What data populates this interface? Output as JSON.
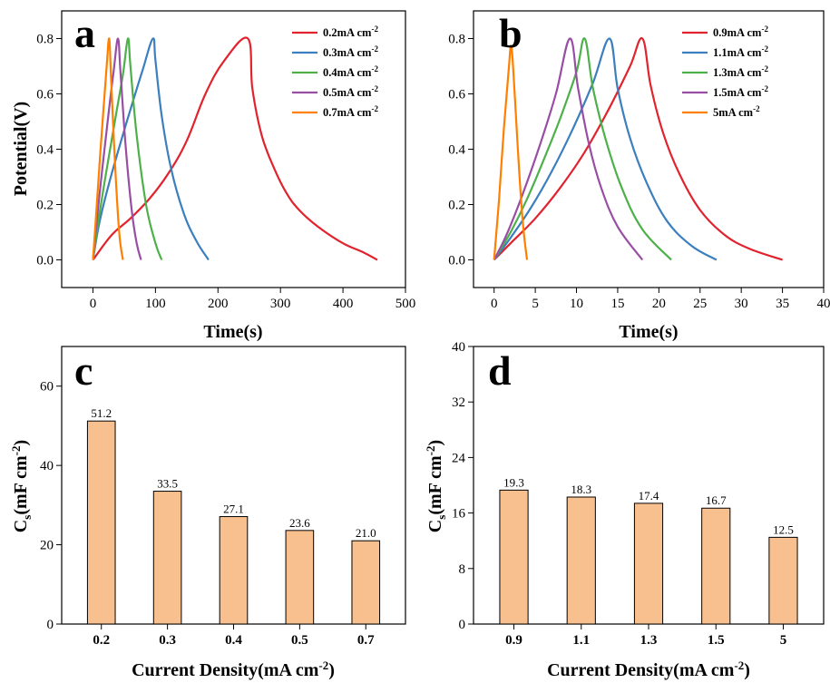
{
  "panels": [
    {
      "letter": "a",
      "xlabel": "Time(s)",
      "ylabel": "Potential(V)",
      "xticks": [
        0,
        100,
        200,
        300,
        400,
        500
      ],
      "yticks": [
        "0.0",
        "0.2",
        "0.4",
        "0.6",
        "0.8"
      ],
      "legend": [
        {
          "label": "0.2mA cm",
          "sup": "-2",
          "color": "#e0232d"
        },
        {
          "label": "0.3mA cm",
          "sup": "-2",
          "color": "#3b7fbe"
        },
        {
          "label": "0.4mA cm",
          "sup": "-2",
          "color": "#4db04a"
        },
        {
          "label": "0.5mA cm",
          "sup": "-2",
          "color": "#984ea3"
        },
        {
          "label": "0.7mA cm",
          "sup": "-2",
          "color": "#ff7f00"
        }
      ]
    },
    {
      "letter": "b",
      "xlabel": "Time(s)",
      "ylabel": "",
      "xticks": [
        0,
        5,
        10,
        15,
        20,
        25,
        30,
        35,
        40
      ],
      "yticks": [
        "0.0",
        "0.2",
        "0.4",
        "0.6",
        "0.8"
      ],
      "legend": [
        {
          "label": "0.9mA cm",
          "sup": "-2",
          "color": "#e0232d"
        },
        {
          "label": "1.1mA cm",
          "sup": "-2",
          "color": "#3b7fbe"
        },
        {
          "label": "1.3mA cm",
          "sup": "-2",
          "color": "#4db04a"
        },
        {
          "label": "1.5mA cm",
          "sup": "-2",
          "color": "#984ea3"
        },
        {
          "label": "5mA cm",
          "sup": "-2",
          "color": "#ff7f00"
        }
      ]
    },
    {
      "letter": "c",
      "xlabel_main": "Current Density(mA cm",
      "xlabel_sup": "-2",
      "xlabel_end": ")",
      "ylabel_main": "C",
      "ylabel_sub": "s",
      "ylabel_mid": "(mF cm",
      "ylabel_sup": "-2",
      "ylabel_end": ")",
      "yticks": [
        "0",
        "20",
        "40",
        "60"
      ]
    },
    {
      "letter": "d",
      "xlabel_main": "Current Density(mA cm",
      "xlabel_sup": "-2",
      "xlabel_end": ")",
      "ylabel_main": "C",
      "ylabel_sub": "s",
      "ylabel_mid": "(mF cm",
      "ylabel_sup": "-2",
      "ylabel_end": ")",
      "yticks": [
        "0",
        "8",
        "16",
        "24",
        "32",
        "40"
      ]
    }
  ],
  "chart_data": [
    {
      "type": "line",
      "panel": "a",
      "xlabel": "Time(s)",
      "ylabel": "Potential(V)",
      "xlim": [
        -50,
        500
      ],
      "ylim": [
        -0.1,
        0.9
      ],
      "series": [
        {
          "name": "0.2mA cm-2",
          "color": "#e0232d",
          "x": [
            0,
            30,
            60,
            90,
            120,
            150,
            180,
            210,
            248,
            255,
            270,
            290,
            310,
            330,
            360,
            400,
            430,
            455
          ],
          "y": [
            0,
            0.09,
            0.15,
            0.22,
            0.31,
            0.43,
            0.6,
            0.72,
            0.8,
            0.62,
            0.45,
            0.33,
            0.24,
            0.18,
            0.12,
            0.06,
            0.03,
            0
          ]
        },
        {
          "name": "0.3mA cm-2",
          "color": "#3b7fbe",
          "x": [
            0,
            10,
            25,
            45,
            65,
            80,
            96,
            100,
            110,
            125,
            145,
            165,
            185
          ],
          "y": [
            0,
            0.13,
            0.27,
            0.43,
            0.58,
            0.69,
            0.8,
            0.72,
            0.52,
            0.33,
            0.17,
            0.07,
            0
          ]
        },
        {
          "name": "0.4mA cm-2",
          "color": "#4db04a",
          "x": [
            0,
            8,
            20,
            35,
            48,
            56,
            60,
            70,
            85,
            100,
            110
          ],
          "y": [
            0,
            0.13,
            0.3,
            0.5,
            0.67,
            0.8,
            0.7,
            0.45,
            0.2,
            0.06,
            0
          ]
        },
        {
          "name": "0.5mA cm-2",
          "color": "#984ea3",
          "x": [
            0,
            6,
            15,
            25,
            33,
            40,
            44,
            52,
            62,
            70,
            77
          ],
          "y": [
            0,
            0.14,
            0.33,
            0.53,
            0.68,
            0.8,
            0.68,
            0.42,
            0.18,
            0.06,
            0
          ]
        },
        {
          "name": "0.7mA cm-2",
          "color": "#ff7f00",
          "x": [
            0,
            5,
            11,
            17,
            22,
            26,
            29,
            35,
            42,
            48
          ],
          "y": [
            0,
            0.16,
            0.36,
            0.55,
            0.7,
            0.8,
            0.66,
            0.36,
            0.1,
            0
          ]
        }
      ]
    },
    {
      "type": "line",
      "panel": "b",
      "xlabel": "Time(s)",
      "ylabel": "",
      "xlim": [
        -2.5,
        40
      ],
      "ylim": [
        -0.1,
        0.9
      ],
      "series": [
        {
          "name": "0.9mA cm-2",
          "color": "#e0232d",
          "x": [
            0,
            2,
            5,
            8,
            11,
            14,
            16.5,
            18,
            19,
            20.5,
            22.5,
            25,
            28,
            31,
            35
          ],
          "y": [
            0,
            0.06,
            0.15,
            0.26,
            0.39,
            0.55,
            0.7,
            0.8,
            0.63,
            0.46,
            0.31,
            0.18,
            0.09,
            0.04,
            0
          ]
        },
        {
          "name": "1.1mA cm-2",
          "color": "#3b7fbe",
          "x": [
            0,
            2,
            4.5,
            7,
            9.5,
            12,
            14,
            15,
            16.5,
            18.5,
            21,
            24,
            27
          ],
          "y": [
            0,
            0.08,
            0.19,
            0.32,
            0.47,
            0.64,
            0.8,
            0.62,
            0.44,
            0.28,
            0.14,
            0.05,
            0
          ]
        },
        {
          "name": "1.3mA cm-2",
          "color": "#4db04a",
          "x": [
            0,
            2,
            4,
            6,
            8,
            10,
            11,
            12,
            13.5,
            15.5,
            18,
            21.5
          ],
          "y": [
            0,
            0.1,
            0.22,
            0.36,
            0.51,
            0.68,
            0.8,
            0.62,
            0.44,
            0.26,
            0.11,
            0
          ]
        },
        {
          "name": "1.5mA cm-2",
          "color": "#984ea3",
          "x": [
            0,
            1.5,
            3.5,
            5.5,
            7.5,
            9.2,
            10.2,
            11.5,
            13,
            15,
            18
          ],
          "y": [
            0,
            0.09,
            0.24,
            0.41,
            0.6,
            0.8,
            0.62,
            0.42,
            0.26,
            0.12,
            0
          ]
        },
        {
          "name": "5mA cm-2",
          "color": "#ff7f00",
          "x": [
            0,
            0.6,
            1.2,
            1.8,
            2.1,
            2.5,
            3.0,
            3.5,
            4.0
          ],
          "y": [
            0,
            0.22,
            0.48,
            0.7,
            0.77,
            0.6,
            0.34,
            0.13,
            0
          ]
        }
      ]
    },
    {
      "type": "bar",
      "panel": "c",
      "xlabel": "Current Density(mA cm-2)",
      "ylabel": "Cs(mF cm-2)",
      "ylim": [
        0,
        70
      ],
      "categories": [
        "0.2",
        "0.3",
        "0.4",
        "0.5",
        "0.7"
      ],
      "values": [
        51.2,
        33.5,
        27.1,
        23.6,
        21.0
      ],
      "value_labels": [
        "51.2",
        "33.5",
        "27.1",
        "23.6",
        "21.0"
      ],
      "bar_color": "#f9c08f"
    },
    {
      "type": "bar",
      "panel": "d",
      "xlabel": "Current Density(mA cm-2)",
      "ylabel": "Cs(mF cm-2)",
      "ylim": [
        0,
        40
      ],
      "categories": [
        "0.9",
        "1.1",
        "1.3",
        "1.5",
        "5"
      ],
      "values": [
        19.3,
        18.3,
        17.4,
        16.7,
        12.5
      ],
      "value_labels": [
        "19.3",
        "18.3",
        "17.4",
        "16.7",
        "12.5"
      ],
      "bar_color": "#f9c08f"
    }
  ]
}
